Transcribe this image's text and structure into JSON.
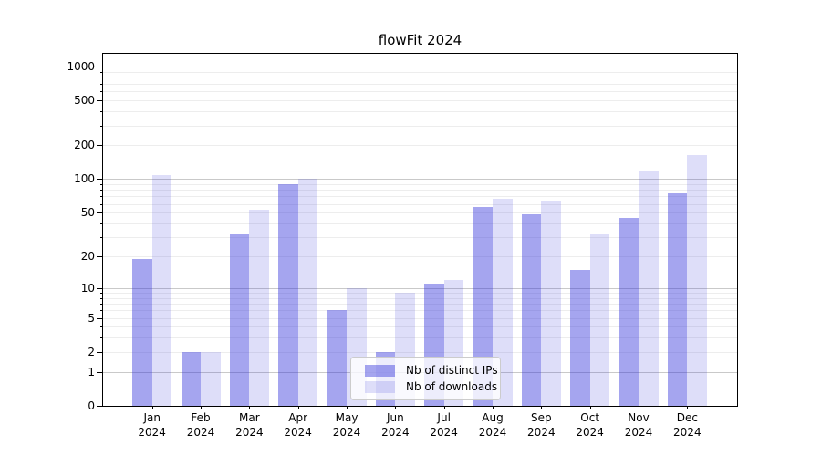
{
  "chart_data": {
    "type": "bar",
    "title": "flowFit 2024",
    "categories": [
      "Jan\n2024",
      "Feb\n2024",
      "Mar\n2024",
      "Apr\n2024",
      "May\n2024",
      "Jun\n2024",
      "Jul\n2024",
      "Aug\n2024",
      "Sep\n2024",
      "Oct\n2024",
      "Nov\n2024",
      "Dec\n2024"
    ],
    "series": [
      {
        "name": "Nb of distinct IPs",
        "color": "rgba(47,47,219,0.43)",
        "values": [
          19,
          2,
          32,
          90,
          6,
          2,
          11,
          56,
          48,
          15,
          45,
          74
        ]
      },
      {
        "name": "Nb of downloads",
        "color": "rgba(47,47,219,0.16)",
        "values": [
          108,
          2,
          53,
          100,
          10,
          9,
          12,
          67,
          64,
          32,
          120,
          165
        ]
      }
    ],
    "xlabel": "",
    "ylabel": "",
    "yscale": "log1p",
    "yticks": [
      0,
      1,
      2,
      5,
      10,
      20,
      50,
      100,
      200,
      500,
      1000
    ],
    "major_gridlines": [
      1,
      10,
      100,
      1000
    ],
    "minor_gridlines": [
      2,
      3,
      4,
      5,
      6,
      7,
      8,
      9,
      20,
      30,
      40,
      50,
      60,
      70,
      80,
      90,
      200,
      300,
      400,
      500,
      600,
      700,
      800,
      900
    ],
    "ylim": [
      0,
      1300
    ],
    "grid": true,
    "legend_position": "lower center"
  },
  "legend": {
    "items": [
      {
        "label": "Nb of distinct IPs"
      },
      {
        "label": "Nb of downloads"
      }
    ]
  },
  "colors": {
    "bar_distinct_ips": "rgba(47,47,219,0.43)",
    "bar_downloads": "rgba(47,47,219,0.16)",
    "grid_major": "#c9c9c9",
    "grid_minor": "#ededed",
    "spine": "#000000",
    "text": "#000000",
    "legend_border": "#cccccc",
    "legend_bg": "rgba(255,255,255,0.8)"
  }
}
